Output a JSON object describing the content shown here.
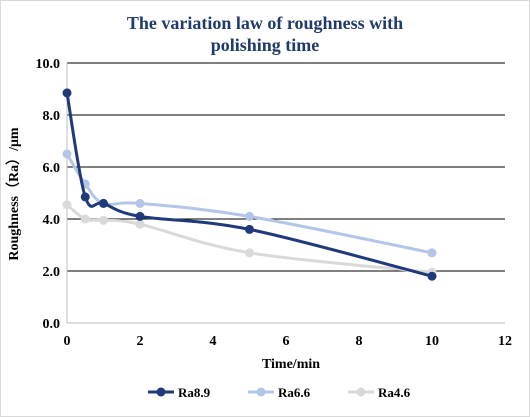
{
  "chart_data": {
    "type": "line",
    "title": [
      "The variation law of roughness with",
      "polishing time"
    ],
    "xlabel": "Time/min",
    "ylabel": "Roughness（Ra）/μm",
    "xlim": [
      0,
      12
    ],
    "ylim": [
      0,
      10
    ],
    "xticks": [
      "0",
      "2",
      "4",
      "6",
      "8",
      "10",
      "12"
    ],
    "yticks": [
      "0.0",
      "2.0",
      "4.0",
      "6.0",
      "8.0",
      "10.0"
    ],
    "grid": "horizontal",
    "legend_position": "bottom",
    "series": [
      {
        "name": "Ra8.9",
        "color": "#1f3a7a",
        "x": [
          0,
          0.5,
          1,
          2,
          5,
          10
        ],
        "y": [
          8.85,
          4.85,
          4.6,
          4.1,
          3.6,
          1.8
        ]
      },
      {
        "name": "Ra6.6",
        "color": "#b4c6e7",
        "x": [
          0,
          0.5,
          1,
          2,
          5,
          10
        ],
        "y": [
          6.5,
          5.35,
          4.6,
          4.6,
          4.1,
          2.7
        ]
      },
      {
        "name": "Ra4.6",
        "color": "#d9d9d9",
        "x": [
          0,
          0.5,
          1,
          2,
          5,
          10
        ],
        "y": [
          4.55,
          4.0,
          3.95,
          3.8,
          2.7,
          1.95
        ]
      }
    ]
  }
}
